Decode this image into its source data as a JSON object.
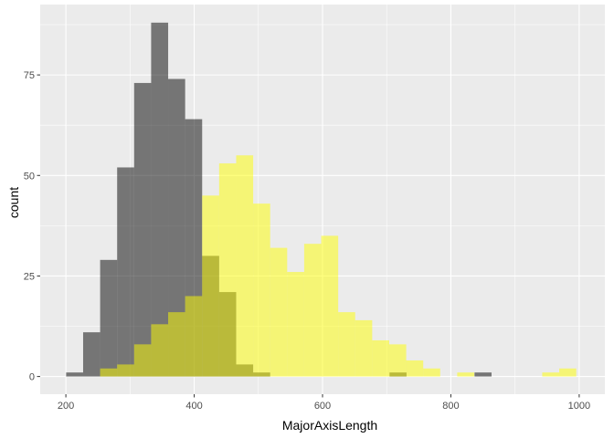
{
  "chart_data": {
    "type": "bar",
    "xlabel": "MajorAxisLength",
    "ylabel": "count",
    "xlim": [
      160,
      1040
    ],
    "ylim": [
      -4.4,
      92.5
    ],
    "x_ticks": [
      200,
      400,
      600,
      800,
      1000
    ],
    "y_ticks": [
      0,
      25,
      50,
      75
    ],
    "grid": true,
    "legend": "none",
    "panel_color": "#ebebeb",
    "grid_color": "#ffffff",
    "series": [
      {
        "color": "#000000",
        "opacity": 0.5,
        "bins": [
          {
            "x0": 200.4,
            "x1": 226.9,
            "count": 1
          },
          {
            "x0": 226.9,
            "x1": 253.4,
            "count": 11
          },
          {
            "x0": 253.4,
            "x1": 279.9,
            "count": 29
          },
          {
            "x0": 279.9,
            "x1": 306.4,
            "count": 52
          },
          {
            "x0": 306.4,
            "x1": 332.9,
            "count": 73
          },
          {
            "x0": 332.9,
            "x1": 359.4,
            "count": 88
          },
          {
            "x0": 359.4,
            "x1": 385.9,
            "count": 74
          },
          {
            "x0": 385.9,
            "x1": 412.4,
            "count": 64
          },
          {
            "x0": 412.4,
            "x1": 438.9,
            "count": 30
          },
          {
            "x0": 438.9,
            "x1": 465.4,
            "count": 21
          },
          {
            "x0": 465.4,
            "x1": 491.9,
            "count": 3
          },
          {
            "x0": 491.9,
            "x1": 518.4,
            "count": 1
          },
          {
            "x0": 704.4,
            "x1": 730.9,
            "count": 1
          },
          {
            "x0": 836.9,
            "x1": 863.4,
            "count": 1
          }
        ]
      },
      {
        "color": "#ffff00",
        "opacity": 0.5,
        "bins": [
          {
            "x0": 253.4,
            "x1": 279.9,
            "count": 2
          },
          {
            "x0": 279.9,
            "x1": 306.4,
            "count": 3
          },
          {
            "x0": 306.4,
            "x1": 332.9,
            "count": 8
          },
          {
            "x0": 332.9,
            "x1": 359.4,
            "count": 13
          },
          {
            "x0": 359.4,
            "x1": 385.9,
            "count": 16
          },
          {
            "x0": 385.9,
            "x1": 412.4,
            "count": 20
          },
          {
            "x0": 412.4,
            "x1": 438.9,
            "count": 45
          },
          {
            "x0": 438.9,
            "x1": 465.4,
            "count": 53
          },
          {
            "x0": 465.4,
            "x1": 491.9,
            "count": 55
          },
          {
            "x0": 491.9,
            "x1": 518.4,
            "count": 43
          },
          {
            "x0": 518.4,
            "x1": 544.9,
            "count": 32
          },
          {
            "x0": 544.9,
            "x1": 571.4,
            "count": 26
          },
          {
            "x0": 571.4,
            "x1": 597.9,
            "count": 33
          },
          {
            "x0": 597.9,
            "x1": 624.4,
            "count": 35
          },
          {
            "x0": 624.4,
            "x1": 650.9,
            "count": 16
          },
          {
            "x0": 650.9,
            "x1": 677.4,
            "count": 14
          },
          {
            "x0": 677.4,
            "x1": 703.9,
            "count": 9
          },
          {
            "x0": 703.9,
            "x1": 730.4,
            "count": 8
          },
          {
            "x0": 730.4,
            "x1": 756.9,
            "count": 4
          },
          {
            "x0": 756.9,
            "x1": 783.4,
            "count": 2
          },
          {
            "x0": 809.9,
            "x1": 836.4,
            "count": 1
          },
          {
            "x0": 942.4,
            "x1": 968.9,
            "count": 1
          },
          {
            "x0": 968.9,
            "x1": 995.4,
            "count": 2
          }
        ]
      }
    ]
  }
}
